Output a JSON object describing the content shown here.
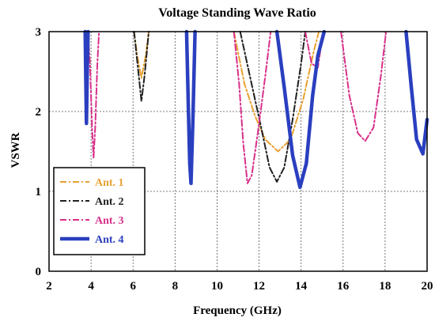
{
  "chart_data": {
    "type": "line",
    "title": "Voltage Standing Wave Ratio",
    "xlabel": "Frequency (GHz)",
    "ylabel": "VSWR",
    "xlim": [
      2,
      20
    ],
    "ylim": [
      0,
      3
    ],
    "xticks": [
      "2",
      "4",
      "6",
      "8",
      "10",
      "12",
      "14",
      "16",
      "18",
      "20"
    ],
    "yticks": [
      "0",
      "1",
      "2",
      "3"
    ],
    "grid": true,
    "legend_position": "lower-left",
    "series": [
      {
        "name": "Ant. 1",
        "color": "#e8a030",
        "dash": "dashdot",
        "segments": [
          [
            [
              6.05,
              3.0
            ],
            [
              6.2,
              2.7
            ],
            [
              6.4,
              2.42
            ],
            [
              6.6,
              2.7
            ],
            [
              6.75,
              3.0
            ]
          ],
          [
            [
              10.8,
              3.0
            ],
            [
              11.3,
              2.35
            ],
            [
              11.8,
              1.95
            ],
            [
              12.3,
              1.65
            ],
            [
              12.9,
              1.5
            ],
            [
              13.5,
              1.65
            ],
            [
              14.1,
              2.15
            ],
            [
              14.6,
              2.75
            ],
            [
              14.85,
              3.0
            ]
          ]
        ]
      },
      {
        "name": "Ant. 2",
        "color": "#202020",
        "dash": "dashdot",
        "segments": [
          [
            [
              6.05,
              3.0
            ],
            [
              6.25,
              2.5
            ],
            [
              6.4,
              2.13
            ],
            [
              6.55,
              2.45
            ],
            [
              6.75,
              3.0
            ]
          ],
          [
            [
              11.1,
              3.0
            ],
            [
              11.6,
              2.4
            ],
            [
              12.1,
              1.8
            ],
            [
              12.5,
              1.3
            ],
            [
              12.85,
              1.12
            ],
            [
              13.2,
              1.3
            ],
            [
              13.6,
              1.9
            ],
            [
              14.0,
              2.6
            ],
            [
              14.2,
              3.0
            ]
          ]
        ]
      },
      {
        "name": "Ant. 3",
        "color": "#d8308a",
        "dash": "dashdot",
        "segments": [
          [
            [
              3.85,
              3.0
            ],
            [
              3.95,
              2.6
            ],
            [
              4.05,
              1.8
            ],
            [
              4.12,
              1.42
            ],
            [
              4.2,
              1.8
            ],
            [
              4.3,
              2.6
            ],
            [
              4.38,
              3.0
            ]
          ],
          [
            [
              10.8,
              3.0
            ],
            [
              11.05,
              2.35
            ],
            [
              11.25,
              1.6
            ],
            [
              11.45,
              1.1
            ],
            [
              11.65,
              1.2
            ],
            [
              11.95,
              1.75
            ],
            [
              12.3,
              2.45
            ],
            [
              12.55,
              3.0
            ]
          ],
          [
            [
              14.2,
              3.0
            ],
            [
              14.5,
              2.6
            ],
            [
              14.8,
              2.55
            ],
            [
              15.05,
              3.0
            ]
          ],
          [
            [
              15.9,
              3.0
            ],
            [
              16.3,
              2.2
            ],
            [
              16.7,
              1.73
            ],
            [
              17.05,
              1.63
            ],
            [
              17.45,
              1.8
            ],
            [
              17.8,
              2.45
            ],
            [
              18.05,
              3.0
            ]
          ]
        ]
      },
      {
        "name": "Ant. 4",
        "color": "#2a3fbf",
        "dash": "solid",
        "segments": [
          [
            [
              3.72,
              3.0
            ],
            [
              3.75,
              2.4
            ],
            [
              3.78,
              1.85
            ],
            [
              3.82,
              2.5
            ],
            [
              3.86,
              3.0
            ]
          ],
          [
            [
              8.55,
              3.0
            ],
            [
              8.62,
              2.2
            ],
            [
              8.7,
              1.35
            ],
            [
              8.76,
              1.1
            ],
            [
              8.85,
              1.9
            ],
            [
              8.95,
              3.0
            ]
          ],
          [
            [
              12.85,
              3.0
            ],
            [
              13.2,
              2.3
            ],
            [
              13.6,
              1.45
            ],
            [
              13.95,
              1.05
            ],
            [
              14.25,
              1.35
            ],
            [
              14.55,
              2.2
            ],
            [
              14.8,
              2.7
            ],
            [
              15.1,
              3.0
            ]
          ],
          [
            [
              19.0,
              3.0
            ],
            [
              19.25,
              2.3
            ],
            [
              19.5,
              1.65
            ],
            [
              19.8,
              1.47
            ],
            [
              20.0,
              1.9
            ]
          ]
        ]
      }
    ]
  }
}
